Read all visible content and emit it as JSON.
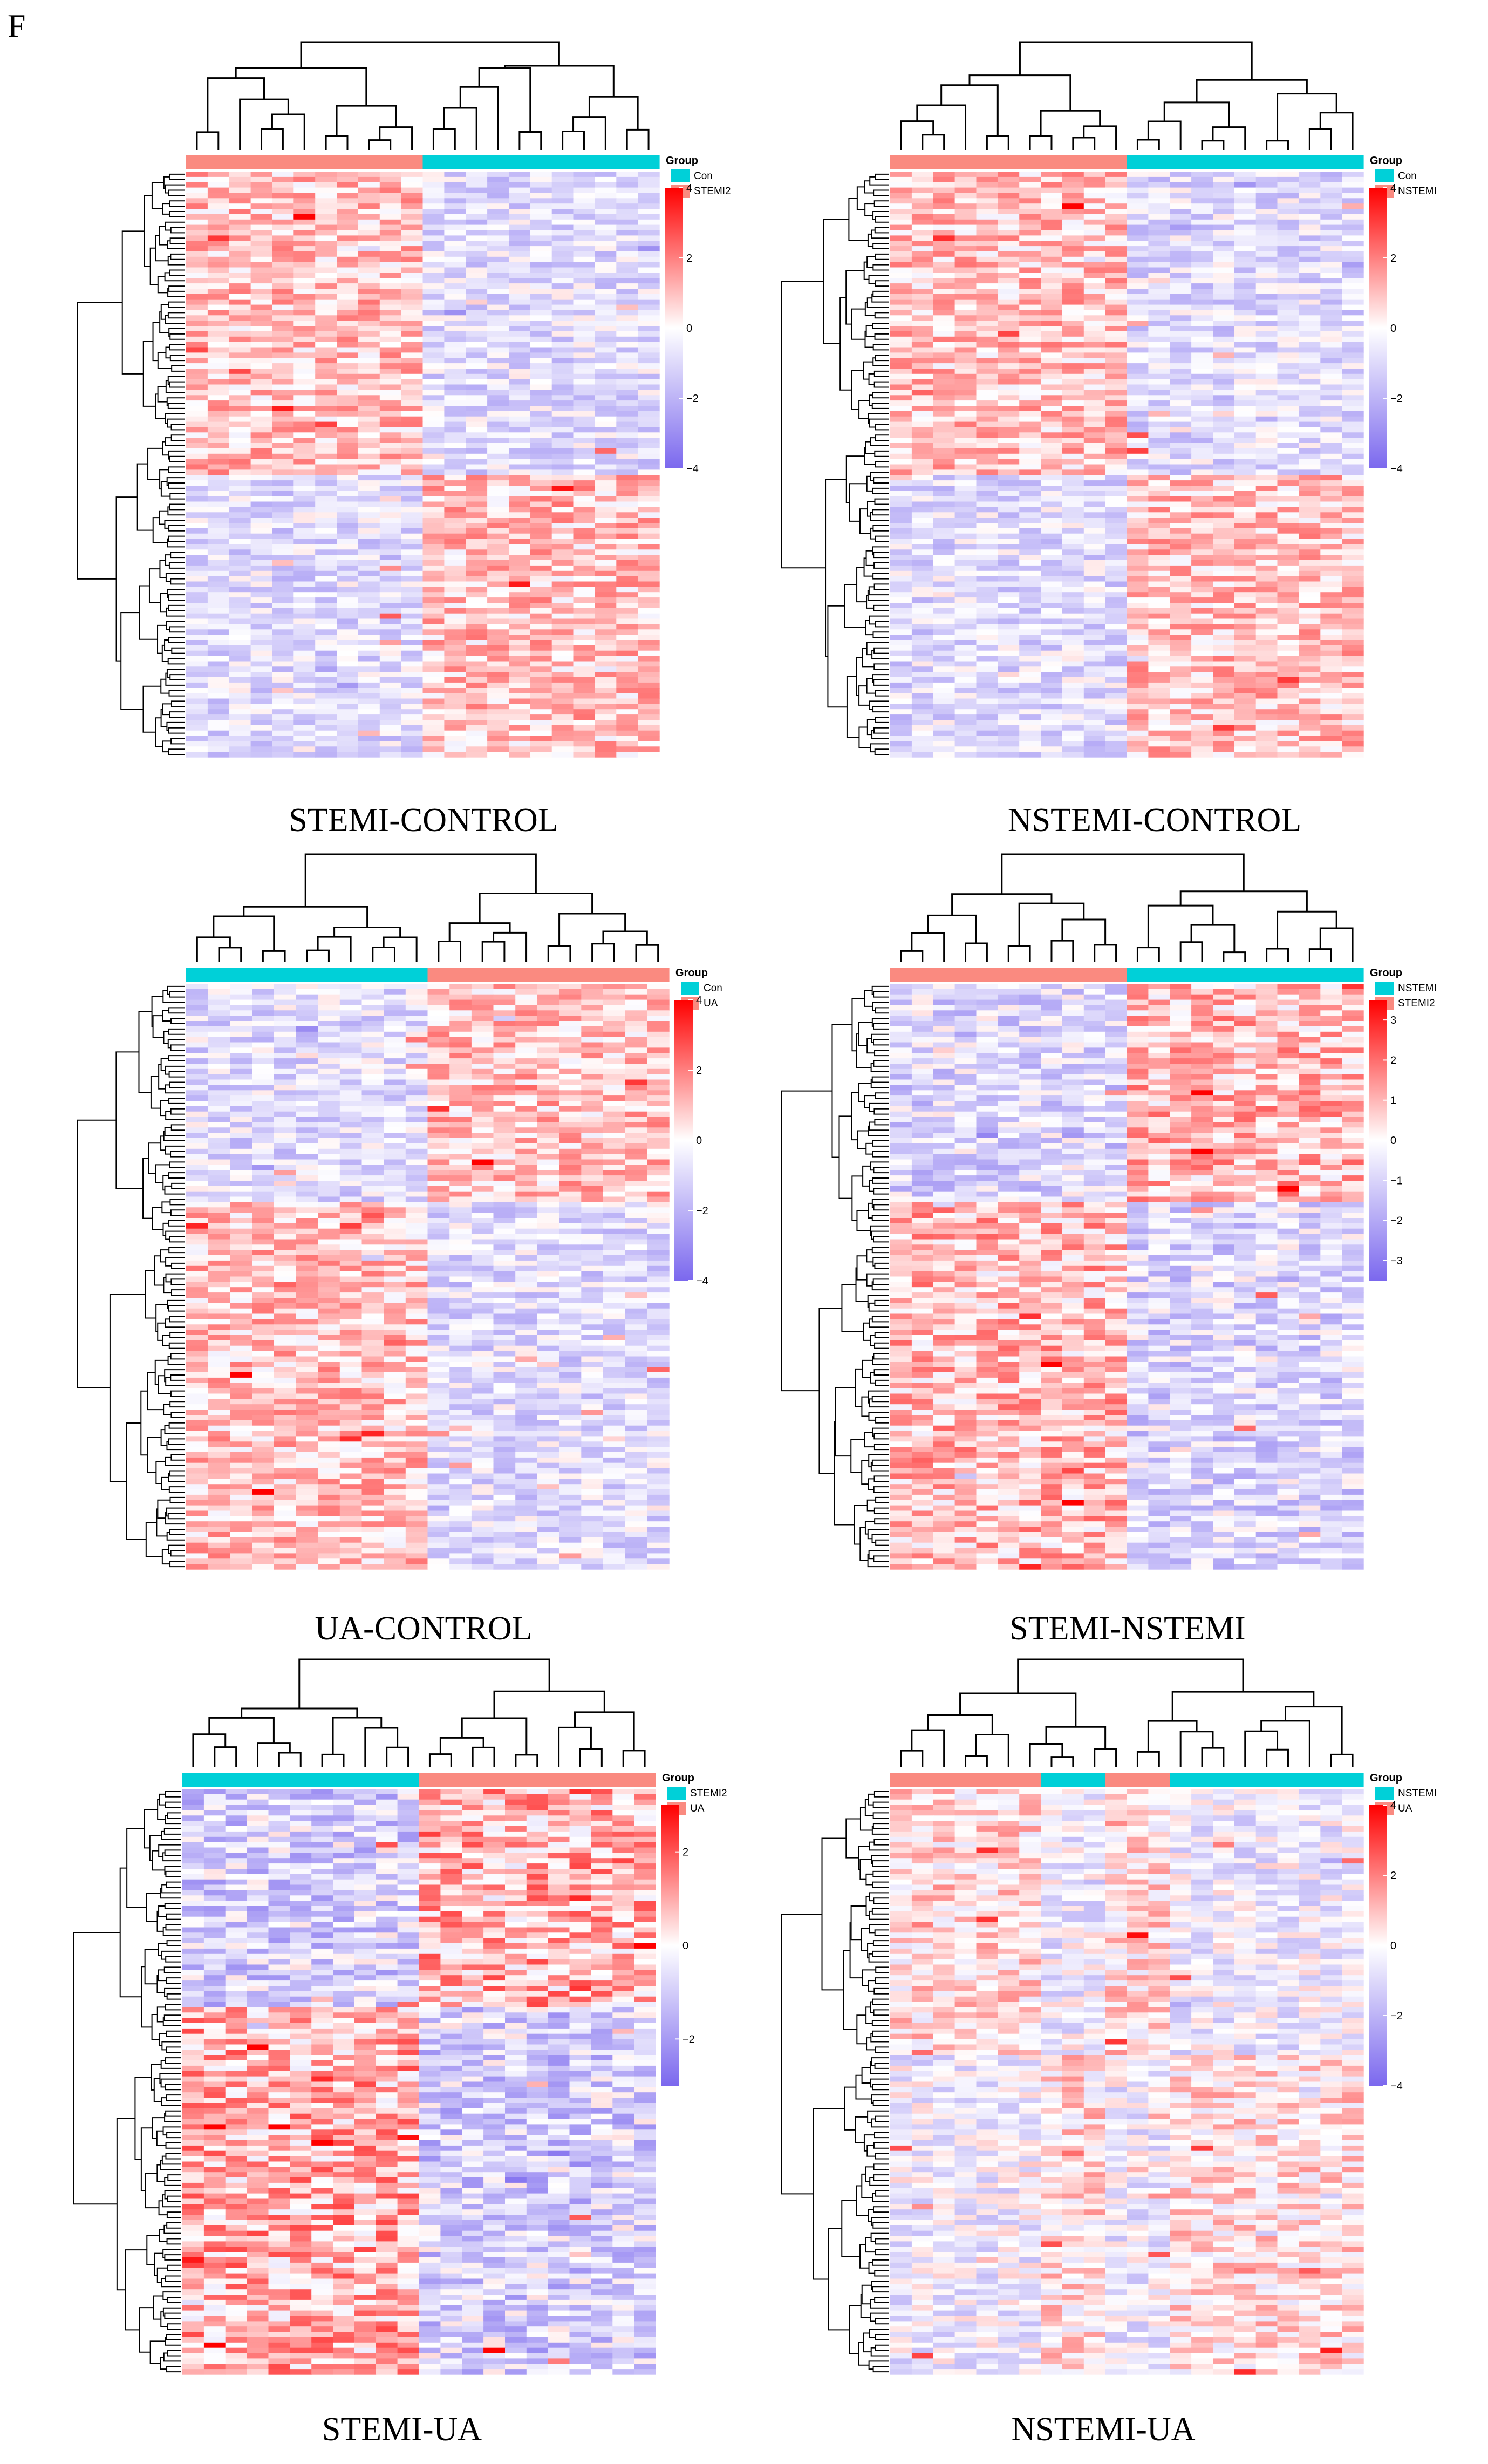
{
  "panel_letter": "F",
  "colors": {
    "low": "#7b68ee",
    "mid": "#ffffff",
    "high": "#ff0000",
    "group_cyan": "#00d0d8",
    "group_salmon": "#fa8a80",
    "dendro": "#000000"
  },
  "chart_data": [
    {
      "type": "heatmap",
      "title": "STEMI-CONTROL",
      "legend_title": "Group",
      "groups": [
        "Con",
        "STEMI2"
      ],
      "columns": 22,
      "rows": 110,
      "column_groups": [
        "STEMI2",
        "STEMI2",
        "STEMI2",
        "STEMI2",
        "STEMI2",
        "STEMI2",
        "STEMI2",
        "STEMI2",
        "STEMI2",
        "STEMI2",
        "STEMI2",
        "Con",
        "Con",
        "Con",
        "Con",
        "Con",
        "Con",
        "Con",
        "Con",
        "Con",
        "Con",
        "Con"
      ],
      "scale_range": [
        -4,
        4
      ],
      "scale_ticks": [
        4,
        2,
        0,
        -2,
        -4
      ],
      "pattern": "left_top_up"
    },
    {
      "type": "heatmap",
      "title": "NSTEMI-CONTROL",
      "legend_title": "Group",
      "groups": [
        "Con",
        "NSTEMI"
      ],
      "columns": 22,
      "rows": 110,
      "column_groups": [
        "NSTEMI",
        "NSTEMI",
        "NSTEMI",
        "NSTEMI",
        "NSTEMI",
        "NSTEMI",
        "NSTEMI",
        "NSTEMI",
        "NSTEMI",
        "NSTEMI",
        "NSTEMI",
        "Con",
        "Con",
        "Con",
        "Con",
        "Con",
        "Con",
        "Con",
        "Con",
        "Con",
        "Con",
        "Con"
      ],
      "scale_range": [
        -4,
        4
      ],
      "scale_ticks": [
        4,
        2,
        0,
        -2,
        -4
      ],
      "pattern": "left_top_up"
    },
    {
      "type": "heatmap",
      "title": "UA-CONTROL",
      "legend_title": "Group",
      "groups": [
        "Con",
        "UA"
      ],
      "columns": 22,
      "rows": 110,
      "column_groups": [
        "Con",
        "Con",
        "Con",
        "Con",
        "Con",
        "Con",
        "Con",
        "Con",
        "Con",
        "Con",
        "Con",
        "UA",
        "UA",
        "UA",
        "UA",
        "UA",
        "UA",
        "UA",
        "UA",
        "UA",
        "UA",
        "UA"
      ],
      "scale_range": [
        -4,
        4
      ],
      "scale_ticks": [
        4,
        2,
        0,
        -2,
        -4
      ],
      "pattern": "right_top_up"
    },
    {
      "type": "heatmap",
      "title": "STEMI-NSTEMI",
      "legend_title": "Group",
      "groups": [
        "NSTEMI",
        "STEMI2"
      ],
      "columns": 22,
      "rows": 110,
      "column_groups": [
        "STEMI2",
        "STEMI2",
        "STEMI2",
        "STEMI2",
        "STEMI2",
        "STEMI2",
        "STEMI2",
        "STEMI2",
        "STEMI2",
        "STEMI2",
        "STEMI2",
        "NSTEMI",
        "NSTEMI",
        "NSTEMI",
        "NSTEMI",
        "NSTEMI",
        "NSTEMI",
        "NSTEMI",
        "NSTEMI",
        "NSTEMI",
        "NSTEMI",
        "NSTEMI"
      ],
      "scale_range": [
        -3.5,
        3.5
      ],
      "scale_ticks": [
        3,
        2,
        1,
        0,
        -1,
        -2,
        -3
      ],
      "pattern": "right_top_up"
    },
    {
      "type": "heatmap",
      "title": "STEMI-UA",
      "legend_title": "Group",
      "groups": [
        "STEMI2",
        "UA"
      ],
      "columns": 22,
      "rows": 110,
      "column_groups": [
        "STEMI2",
        "STEMI2",
        "STEMI2",
        "STEMI2",
        "STEMI2",
        "STEMI2",
        "STEMI2",
        "STEMI2",
        "STEMI2",
        "STEMI2",
        "STEMI2",
        "UA",
        "UA",
        "UA",
        "UA",
        "UA",
        "UA",
        "UA",
        "UA",
        "UA",
        "UA",
        "UA"
      ],
      "scale_range": [
        -3,
        3
      ],
      "scale_ticks": [
        2,
        0,
        -2
      ],
      "pattern": "right_top_up"
    },
    {
      "type": "heatmap",
      "title": "NSTEMI-UA",
      "legend_title": "Group",
      "groups": [
        "NSTEMI",
        "UA"
      ],
      "columns": 22,
      "rows": 110,
      "column_groups": [
        "UA",
        "UA",
        "UA",
        "UA",
        "UA",
        "UA",
        "UA",
        "NSTEMI",
        "NSTEMI",
        "NSTEMI",
        "UA",
        "UA",
        "UA",
        "NSTEMI",
        "NSTEMI",
        "NSTEMI",
        "NSTEMI",
        "NSTEMI",
        "NSTEMI",
        "NSTEMI",
        "NSTEMI",
        "NSTEMI"
      ],
      "scale_range": [
        -4,
        4
      ],
      "scale_ticks": [
        4,
        2,
        0,
        -2,
        -4
      ],
      "pattern": "mixed"
    }
  ]
}
